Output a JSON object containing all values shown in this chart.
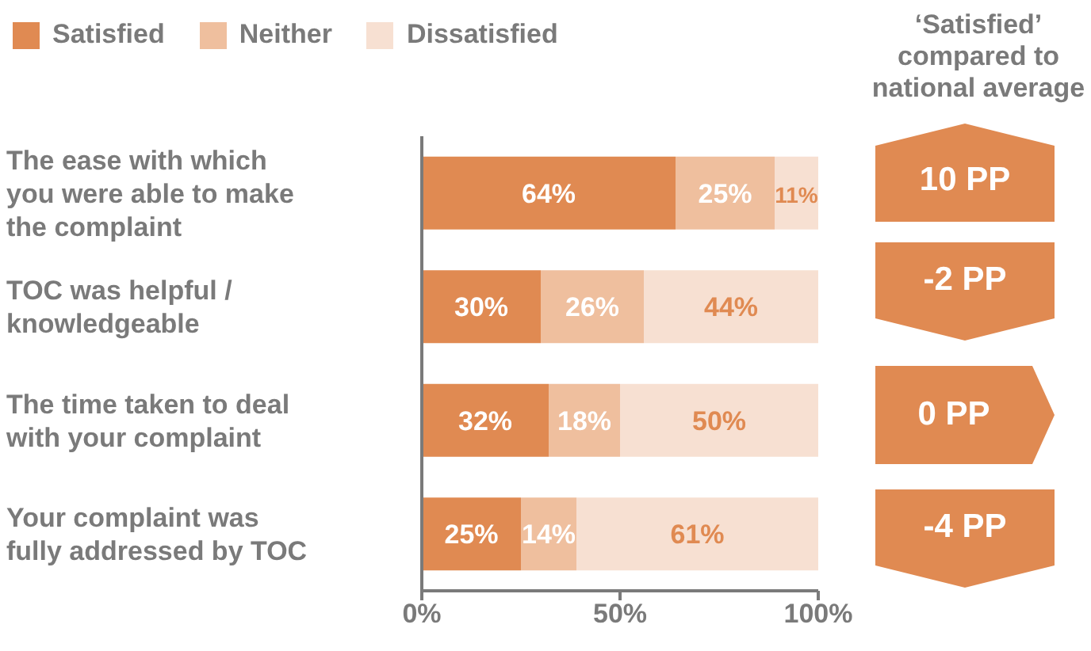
{
  "chart_data": {
    "type": "bar",
    "orientation": "horizontal",
    "stacked": true,
    "categories": [
      "The ease with which you were able to make the complaint",
      "TOC was helpful / knowledgeable",
      "The time taken to deal with your complaint",
      "Your complaint was fully addressed by TOC"
    ],
    "series": [
      {
        "name": "Satisfied",
        "color": "#e08a52",
        "values": [
          64,
          30,
          32,
          25
        ],
        "value_labels": [
          "64%",
          "30%",
          "32%",
          "25%"
        ]
      },
      {
        "name": "Neither",
        "color": "#efbf9e",
        "values": [
          25,
          26,
          18,
          14
        ],
        "value_labels": [
          "25%",
          "26%",
          "18%",
          "14%"
        ]
      },
      {
        "name": "Dissatisfied",
        "color": "#f7e0d2",
        "values": [
          11,
          44,
          50,
          61
        ],
        "value_labels": [
          "11%",
          "44%",
          "50%",
          "61%"
        ]
      }
    ],
    "xlim": [
      0,
      100
    ],
    "xticks": [
      {
        "value": 0,
        "label": "0%"
      },
      {
        "value": 50,
        "label": "50%"
      },
      {
        "value": 100,
        "label": "100%"
      }
    ],
    "legend": "top left",
    "annotations": [
      "‘Satisfied’ compared to national average",
      "10 PP",
      "-2 PP",
      "0 PP",
      "-4 PP"
    ]
  }
}
